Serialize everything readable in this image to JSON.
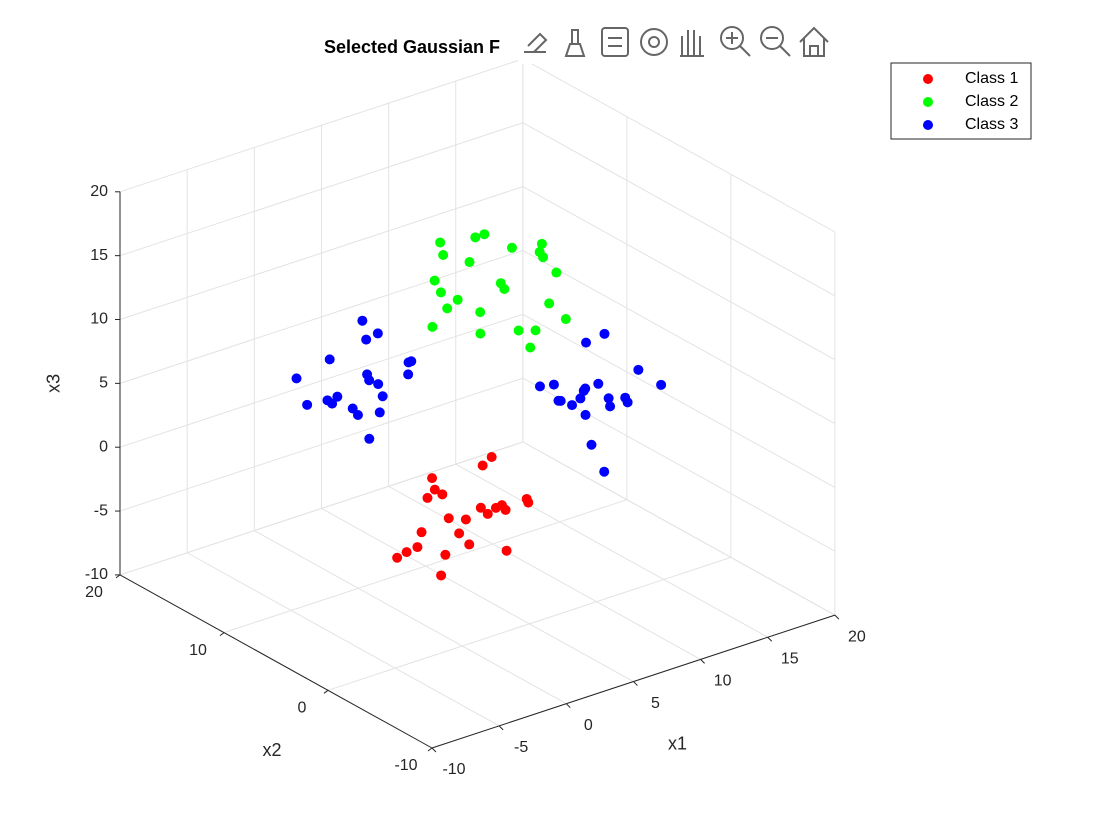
{
  "chart_data": {
    "type": "scatter3d",
    "title": "Selected Gaussian F",
    "xlabel": "x1",
    "ylabel": "x2",
    "zlabel": "x3",
    "xlim": [
      -10,
      20
    ],
    "ylim": [
      -10,
      20
    ],
    "zlim": [
      -10,
      20
    ],
    "xticks": [
      -10,
      -5,
      0,
      5,
      10,
      15,
      20
    ],
    "yticks": [
      -10,
      0,
      10,
      20
    ],
    "zticks": [
      -10,
      -5,
      0,
      5,
      10,
      15,
      20
    ],
    "grid": true,
    "legend": "northeastoutside",
    "series": [
      {
        "name": "Class 1",
        "color": "#ff0000",
        "x": [
          0.5,
          -1.2,
          2.1,
          -2.8,
          1.7,
          -0.4,
          3.2,
          -3.5,
          0.9,
          -1.9,
          2.6,
          -0.8,
          1.3,
          -2.2,
          4.1,
          -4.0,
          0.2,
          2.9,
          -1.5,
          1.0,
          -3.1,
          3.6,
          -0.1,
          1.8
        ],
        "y": [
          0.3,
          1.8,
          -1.1,
          0.7,
          2.5,
          -2.3,
          0.9,
          -0.6,
          -3.0,
          2.9,
          1.4,
          -1.7,
          3.6,
          -0.2,
          -0.9,
          1.1,
          -4.0,
          -2.6,
          0.1,
          4.2,
          -2.7,
          2.2,
          1.5,
          -0.5
        ],
        "z": [
          -0.4,
          1.2,
          0.8,
          -1.6,
          -2.9,
          2.0,
          -0.7,
          0.4,
          1.7,
          -3.3,
          2.6,
          -1.0,
          -0.2,
          3.1,
          0.5,
          -2.2,
          -0.8,
          1.4,
          -4.0,
          0.9,
          2.3,
          -1.9,
          -3.5,
          4.4
        ]
      },
      {
        "name": "Class 2",
        "color": "#00ff00",
        "x": [
          10.3,
          11.8,
          8.9,
          10.7,
          12.5,
          7.7,
          10.9,
          9.4,
          7.0,
          12.9,
          11.4,
          8.3,
          13.6,
          9.8,
          9.1,
          11.1,
          6.0,
          7.4,
          10.1,
          14.2,
          7.3,
          12.2,
          11.5,
          9.5
        ],
        "y": [
          9.6,
          11.2,
          10.8,
          8.4,
          7.1,
          12.0,
          9.3,
          10.4,
          11.7,
          6.7,
          12.6,
          9.0,
          9.8,
          13.1,
          10.5,
          7.8,
          9.2,
          11.4,
          6.0,
          10.9,
          12.3,
          8.1,
          6.5,
          14.4
        ],
        "z": [
          10.5,
          8.8,
          12.1,
          7.2,
          11.7,
          9.6,
          13.2,
          6.5,
          10.9,
          8.1,
          12.6,
          9.2,
          11.3,
          7.8,
          14.1,
          6.0,
          10.2,
          12.9,
          8.5,
          11.0,
          6.9,
          13.6,
          9.9,
          11.8
        ]
      },
      {
        "name": "Class 3",
        "color": "#0000ff",
        "x": [
          0.5,
          -1.2,
          2.1,
          -2.8,
          1.7,
          -0.4,
          3.2,
          -3.5,
          0.9,
          -1.9,
          2.6,
          -0.8,
          1.3,
          -2.2,
          4.1,
          -4.0,
          0.2,
          2.9,
          -1.5,
          1.0,
          9.6,
          11.2,
          10.8,
          8.4,
          7.1,
          12.0,
          9.3,
          10.4,
          11.7,
          6.7,
          12.6,
          9.0,
          9.8,
          13.1,
          10.5,
          7.8,
          9.2,
          11.4,
          6.0,
          10.9
        ],
        "y": [
          9.6,
          11.2,
          10.8,
          8.4,
          7.1,
          12.0,
          9.3,
          10.4,
          11.7,
          6.7,
          12.6,
          9.0,
          9.8,
          13.1,
          10.5,
          7.8,
          9.2,
          11.4,
          6.0,
          10.9,
          0.5,
          -1.2,
          2.1,
          -2.8,
          1.7,
          -0.4,
          3.2,
          -3.5,
          0.9,
          -1.9,
          2.6,
          -0.8,
          1.3,
          -2.2,
          4.1,
          -4.0,
          0.2,
          2.9,
          -1.5,
          1.0
        ],
        "z": [
          6.3,
          7.8,
          4.9,
          6.7,
          8.5,
          3.7,
          6.9,
          5.4,
          3.0,
          8.9,
          7.4,
          4.3,
          9.6,
          5.8,
          5.1,
          7.1,
          2.0,
          3.4,
          6.1,
          10.2,
          10.2,
          6.1,
          3.4,
          2.0,
          7.1,
          5.1,
          5.8,
          9.6,
          4.3,
          7.4,
          8.9,
          3.0,
          5.4,
          6.9,
          3.7,
          8.5,
          6.7,
          4.9,
          7.8,
          6.3
        ]
      }
    ]
  }
}
